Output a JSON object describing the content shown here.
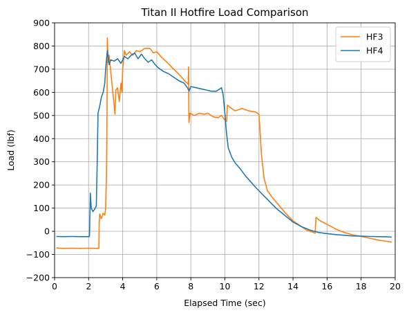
{
  "chart_data": {
    "type": "line",
    "title": "Titan II Hotfire Load Comparison",
    "xlabel": "Elapsed Time (sec)",
    "ylabel": "Load (lbf)",
    "xlim": [
      0,
      20
    ],
    "ylim": [
      -200,
      900
    ],
    "xticks": [
      0,
      2,
      4,
      6,
      8,
      10,
      12,
      14,
      16,
      18,
      20
    ],
    "yticks": [
      -200,
      -100,
      0,
      100,
      200,
      300,
      400,
      500,
      600,
      700,
      800,
      900
    ],
    "grid": true,
    "legend_position": "top-right",
    "series": [
      {
        "name": "HF3",
        "color": "#ff7f0e",
        "points": [
          [
            0.1,
            -72
          ],
          [
            0.5,
            -74
          ],
          [
            1.0,
            -73
          ],
          [
            1.5,
            -74
          ],
          [
            2.0,
            -73
          ],
          [
            2.6,
            -74
          ],
          [
            2.62,
            30
          ],
          [
            2.65,
            75
          ],
          [
            2.75,
            55
          ],
          [
            2.85,
            78
          ],
          [
            2.95,
            70
          ],
          [
            3.0,
            100
          ],
          [
            3.05,
            250
          ],
          [
            3.08,
            500
          ],
          [
            3.1,
            835
          ],
          [
            3.15,
            730
          ],
          [
            3.2,
            760
          ],
          [
            3.3,
            690
          ],
          [
            3.45,
            580
          ],
          [
            3.55,
            505
          ],
          [
            3.6,
            610
          ],
          [
            3.7,
            620
          ],
          [
            3.8,
            560
          ],
          [
            3.9,
            640
          ],
          [
            3.95,
            600
          ],
          [
            4.0,
            700
          ],
          [
            4.1,
            780
          ],
          [
            4.2,
            760
          ],
          [
            4.4,
            775
          ],
          [
            4.6,
            760
          ],
          [
            4.8,
            780
          ],
          [
            5.0,
            775
          ],
          [
            5.3,
            790
          ],
          [
            5.6,
            790
          ],
          [
            5.8,
            770
          ],
          [
            6.0,
            775
          ],
          [
            6.3,
            750
          ],
          [
            6.6,
            730
          ],
          [
            7.0,
            700
          ],
          [
            7.4,
            670
          ],
          [
            7.7,
            645
          ],
          [
            7.85,
            635
          ],
          [
            7.87,
            710
          ],
          [
            7.89,
            470
          ],
          [
            7.95,
            510
          ],
          [
            8.2,
            500
          ],
          [
            8.5,
            510
          ],
          [
            8.8,
            505
          ],
          [
            9.0,
            510
          ],
          [
            9.3,
            495
          ],
          [
            9.6,
            490
          ],
          [
            9.8,
            500
          ],
          [
            10.0,
            480
          ],
          [
            10.1,
            475
          ],
          [
            10.15,
            545
          ],
          [
            10.3,
            535
          ],
          [
            10.6,
            520
          ],
          [
            11.0,
            530
          ],
          [
            11.4,
            520
          ],
          [
            11.8,
            515
          ],
          [
            12.0,
            505
          ],
          [
            12.05,
            450
          ],
          [
            12.15,
            330
          ],
          [
            12.3,
            230
          ],
          [
            12.5,
            175
          ],
          [
            12.8,
            145
          ],
          [
            13.2,
            110
          ],
          [
            13.6,
            75
          ],
          [
            14.0,
            45
          ],
          [
            14.4,
            25
          ],
          [
            14.8,
            5
          ],
          [
            15.2,
            -5
          ],
          [
            15.3,
            -8
          ],
          [
            15.35,
            60
          ],
          [
            15.6,
            45
          ],
          [
            16.0,
            30
          ],
          [
            16.5,
            10
          ],
          [
            17.0,
            -5
          ],
          [
            17.5,
            -15
          ],
          [
            18.0,
            -22
          ],
          [
            18.5,
            -30
          ],
          [
            19.0,
            -38
          ],
          [
            19.5,
            -43
          ],
          [
            19.8,
            -47
          ]
        ]
      },
      {
        "name": "HF4",
        "color": "#1f77b4",
        "points": [
          [
            0.1,
            -22
          ],
          [
            0.5,
            -23
          ],
          [
            1.0,
            -22
          ],
          [
            1.5,
            -23
          ],
          [
            2.0,
            -23
          ],
          [
            2.05,
            -22
          ],
          [
            2.1,
            165
          ],
          [
            2.15,
            100
          ],
          [
            2.25,
            85
          ],
          [
            2.35,
            95
          ],
          [
            2.45,
            110
          ],
          [
            2.5,
            280
          ],
          [
            2.55,
            510
          ],
          [
            2.65,
            540
          ],
          [
            2.75,
            580
          ],
          [
            2.85,
            600
          ],
          [
            2.95,
            640
          ],
          [
            3.0,
            700
          ],
          [
            3.05,
            745
          ],
          [
            3.1,
            780
          ],
          [
            3.2,
            720
          ],
          [
            3.3,
            740
          ],
          [
            3.5,
            735
          ],
          [
            3.7,
            745
          ],
          [
            3.9,
            725
          ],
          [
            4.1,
            755
          ],
          [
            4.3,
            745
          ],
          [
            4.5,
            760
          ],
          [
            4.7,
            770
          ],
          [
            4.9,
            745
          ],
          [
            5.1,
            765
          ],
          [
            5.3,
            745
          ],
          [
            5.5,
            730
          ],
          [
            5.7,
            740
          ],
          [
            5.9,
            720
          ],
          [
            6.1,
            705
          ],
          [
            6.4,
            690
          ],
          [
            6.7,
            680
          ],
          [
            7.0,
            665
          ],
          [
            7.3,
            650
          ],
          [
            7.6,
            640
          ],
          [
            7.8,
            620
          ],
          [
            7.9,
            605
          ],
          [
            8.0,
            625
          ],
          [
            8.3,
            620
          ],
          [
            8.6,
            615
          ],
          [
            8.9,
            610
          ],
          [
            9.2,
            605
          ],
          [
            9.5,
            605
          ],
          [
            9.8,
            620
          ],
          [
            9.9,
            590
          ],
          [
            10.0,
            510
          ],
          [
            10.1,
            420
          ],
          [
            10.2,
            360
          ],
          [
            10.4,
            320
          ],
          [
            10.6,
            295
          ],
          [
            10.9,
            270
          ],
          [
            11.2,
            240
          ],
          [
            11.5,
            215
          ],
          [
            11.8,
            190
          ],
          [
            12.2,
            160
          ],
          [
            12.6,
            130
          ],
          [
            13.0,
            100
          ],
          [
            13.5,
            70
          ],
          [
            14.0,
            40
          ],
          [
            14.5,
            20
          ],
          [
            15.0,
            5
          ],
          [
            15.5,
            -5
          ],
          [
            16.0,
            -10
          ],
          [
            16.5,
            -14
          ],
          [
            17.0,
            -17
          ],
          [
            17.5,
            -20
          ],
          [
            18.0,
            -21
          ],
          [
            18.5,
            -22
          ],
          [
            19.0,
            -23
          ],
          [
            19.5,
            -24
          ],
          [
            19.8,
            -25
          ]
        ]
      }
    ]
  }
}
